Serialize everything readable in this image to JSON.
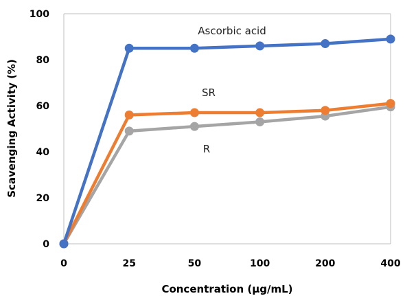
{
  "chart_data": {
    "type": "line",
    "categories": [
      "0",
      "25",
      "50",
      "100",
      "200",
      "400"
    ],
    "series": [
      {
        "name": "Ascorbic acid",
        "color": "#4472C4",
        "values": [
          0,
          85,
          85,
          86,
          87,
          89
        ]
      },
      {
        "name": "SR",
        "color": "#ED7D31",
        "values": [
          0,
          56,
          57,
          57,
          58,
          61
        ]
      },
      {
        "name": "R",
        "color": "#A5A5A5",
        "values": [
          0,
          49,
          51,
          53,
          55.5,
          59.5
        ]
      }
    ],
    "xlabel": "Concentration (μg/mL)",
    "ylabel": "Scavenging Activity  (%)",
    "ylim": [
      0,
      100
    ],
    "yticks": [
      0,
      20,
      40,
      60,
      80,
      100
    ],
    "grid": false,
    "legend": "none"
  }
}
